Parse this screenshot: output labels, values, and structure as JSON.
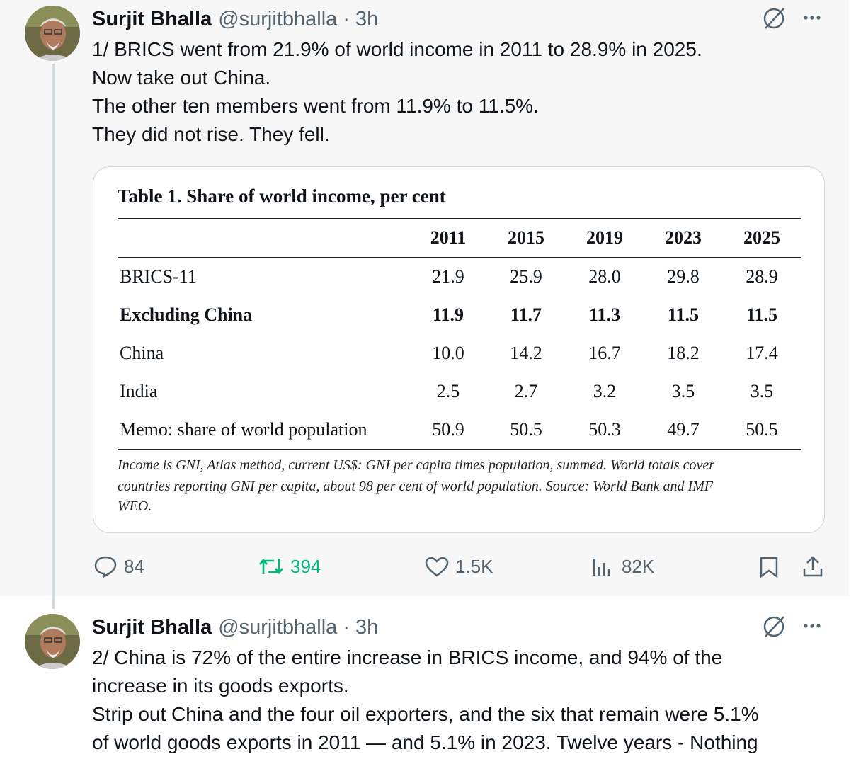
{
  "tweets": [
    {
      "author": "Surjit Bhalla",
      "meta": "@surjitbhalla · 3h",
      "text": [
        "1/ BRICS went from 21.9% of world income in 2011 to 28.9% in 2025.",
        "Now take out China.",
        "The other ten members went from 11.9% to 11.5%.",
        "They did not rise. They fell."
      ],
      "table": {
        "title": "Table 1. Share of world income, per cent",
        "columns": [
          "2011",
          "2015",
          "2019",
          "2023",
          "2025"
        ],
        "rows": [
          [
            "BRICS-11",
            "21.9",
            "25.9",
            "28.0",
            "29.8",
            "28.9"
          ],
          [
            "Excluding China",
            "11.9",
            "11.7",
            "11.3",
            "11.5",
            "11.5"
          ],
          [
            "China",
            "10.0",
            "14.2",
            "16.7",
            "18.2",
            "17.4"
          ],
          [
            "India",
            "2.5",
            "2.7",
            "3.2",
            "3.5",
            "3.5"
          ],
          [
            "Memo: share of world population",
            "50.9",
            "50.5",
            "50.3",
            "49.7",
            "50.5"
          ]
        ],
        "note": [
          "Income is GNI, Atlas method, current US$: GNI per capita times population, summed. World totals cover",
          "countries reporting GNI per capita, about 98 per cent of world population. Source: World Bank and IMF",
          "WEO."
        ]
      },
      "stats": {
        "replies": "84",
        "reposts": "394",
        "likes": "1.5K",
        "views": "82K"
      }
    },
    {
      "author": "Surjit Bhalla",
      "meta": "@surjitbhalla · 3h",
      "text": [
        "2/ China is 72% of the entire increase in BRICS income, and 94% of the",
        "increase in its goods exports.",
        "Strip out China and the four oil exporters, and the six that remain were 5.1%",
        "of world goods exports in 2011 — and 5.1% in 2023. Twelve years - Nothing"
      ]
    }
  ]
}
